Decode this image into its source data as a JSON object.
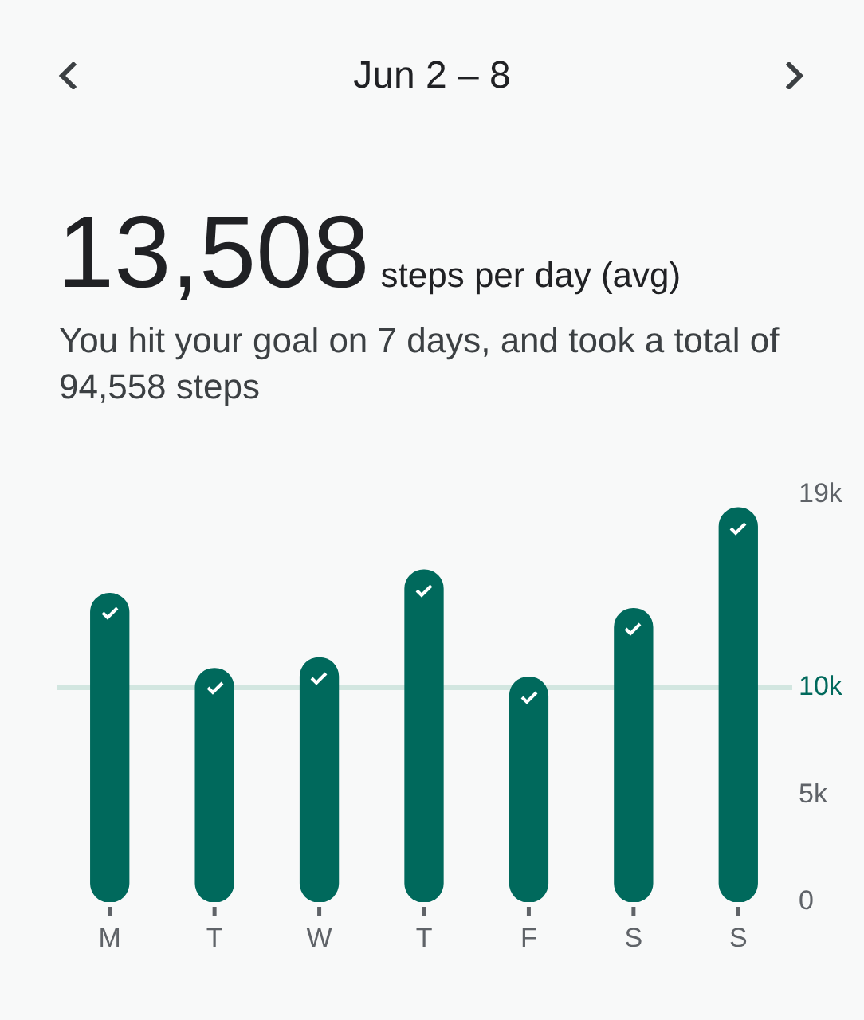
{
  "chart_data": {
    "type": "bar",
    "title": "Jun 2 – 8",
    "subtitle": "You hit your goal on 7 days, and took a total of 94,558 steps",
    "annotations": [
      "13,508",
      "steps per day (avg)"
    ],
    "categories": [
      "M",
      "T",
      "W",
      "T",
      "F",
      "S",
      "S"
    ],
    "values": [
      14400,
      10900,
      11400,
      15500,
      10500,
      13700,
      18400
    ],
    "color": "#00695c",
    "ylim": [
      0,
      19000
    ],
    "yticks": [
      0,
      {
        "value": 5000,
        "label": "5k"
      },
      {
        "value": 10000,
        "label": "10k"
      },
      {
        "value": 19000,
        "label": "19k"
      }
    ],
    "ref_lines": [
      {
        "axis": "y",
        "value": 10000,
        "color": "#d2e6e0"
      }
    ],
    "grid": false,
    "legend": false
  }
}
